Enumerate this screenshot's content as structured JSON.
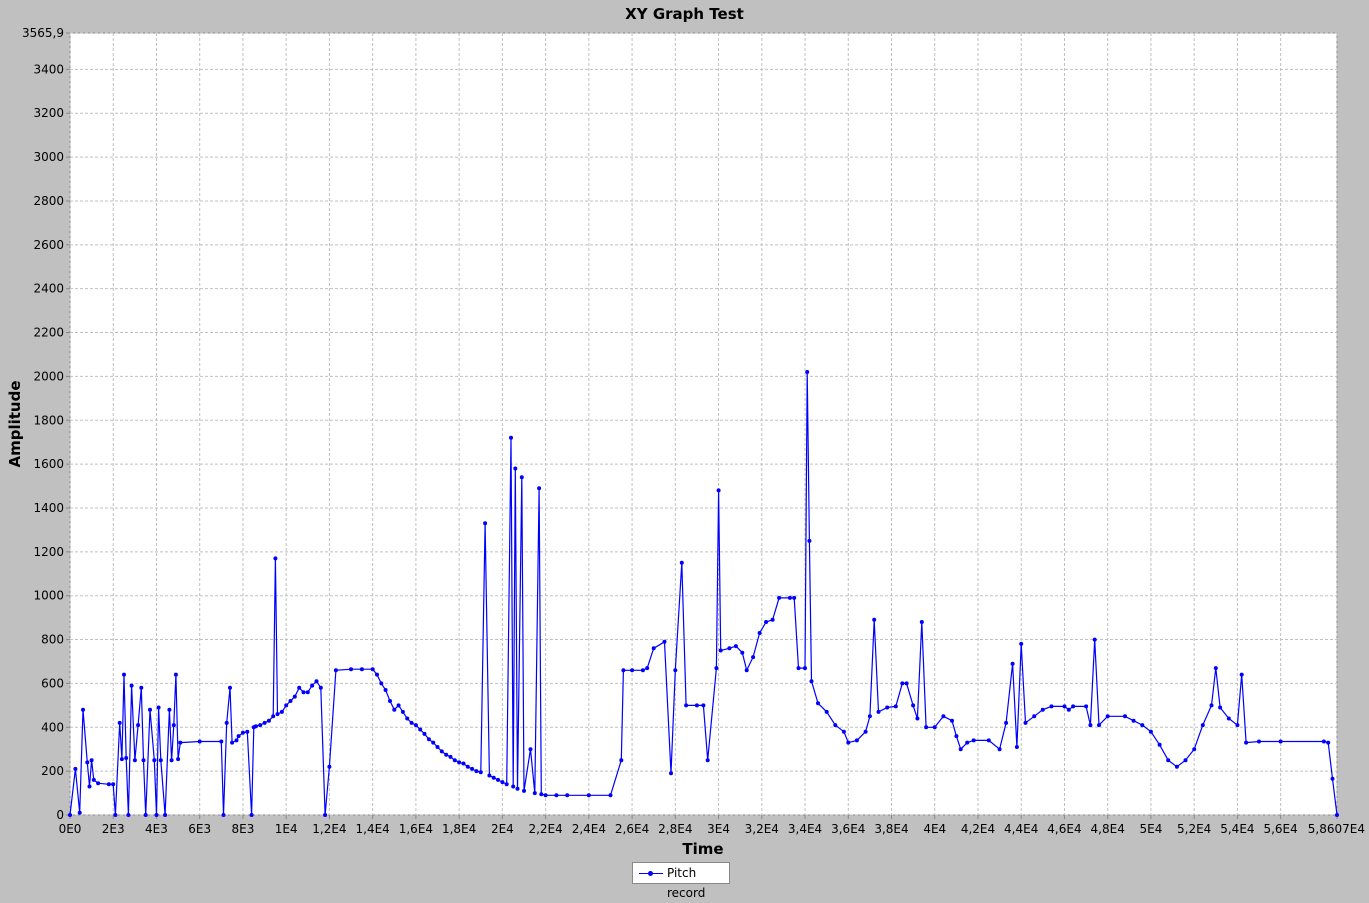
{
  "window": {
    "title": "XY Graph Test"
  },
  "colors": {
    "background": "#c0c0c0",
    "plot_background": "#ffffff",
    "series": "#0000ff",
    "grid": "#c0c0c0"
  },
  "chart_data": {
    "type": "line",
    "title": "XY Graph Test",
    "xlabel": "Time",
    "ylabel": "Amplitude",
    "xlim": [
      0,
      58607
    ],
    "ylim": [
      0,
      3565.9
    ],
    "grid": true,
    "legend_position": "bottom-center",
    "x_ticks": [
      {
        "v": 0,
        "label": "0E0"
      },
      {
        "v": 2000,
        "label": "2E3"
      },
      {
        "v": 4000,
        "label": "4E3"
      },
      {
        "v": 6000,
        "label": "6E3"
      },
      {
        "v": 8000,
        "label": "8E3"
      },
      {
        "v": 10000,
        "label": "1E4"
      },
      {
        "v": 12000,
        "label": "1,2E4"
      },
      {
        "v": 14000,
        "label": "1,4E4"
      },
      {
        "v": 16000,
        "label": "1,6E4"
      },
      {
        "v": 18000,
        "label": "1,8E4"
      },
      {
        "v": 20000,
        "label": "2E4"
      },
      {
        "v": 22000,
        "label": "2,2E4"
      },
      {
        "v": 24000,
        "label": "2,4E4"
      },
      {
        "v": 26000,
        "label": "2,6E4"
      },
      {
        "v": 28000,
        "label": "2,8E4"
      },
      {
        "v": 30000,
        "label": "3E4"
      },
      {
        "v": 32000,
        "label": "3,2E4"
      },
      {
        "v": 34000,
        "label": "3,4E4"
      },
      {
        "v": 36000,
        "label": "3,6E4"
      },
      {
        "v": 38000,
        "label": "3,8E4"
      },
      {
        "v": 40000,
        "label": "4E4"
      },
      {
        "v": 42000,
        "label": "4,2E4"
      },
      {
        "v": 44000,
        "label": "4,4E4"
      },
      {
        "v": 46000,
        "label": "4,6E4"
      },
      {
        "v": 48000,
        "label": "4,8E4"
      },
      {
        "v": 50000,
        "label": "5E4"
      },
      {
        "v": 52000,
        "label": "5,2E4"
      },
      {
        "v": 54000,
        "label": "5,4E4"
      },
      {
        "v": 56000,
        "label": "5,6E4"
      },
      {
        "v": 58607,
        "label": "5,8607E4"
      }
    ],
    "y_ticks": [
      {
        "v": 0,
        "label": "0"
      },
      {
        "v": 200,
        "label": "200"
      },
      {
        "v": 400,
        "label": "400"
      },
      {
        "v": 600,
        "label": "600"
      },
      {
        "v": 800,
        "label": "800"
      },
      {
        "v": 1000,
        "label": "1000"
      },
      {
        "v": 1200,
        "label": "1200"
      },
      {
        "v": 1400,
        "label": "1400"
      },
      {
        "v": 1600,
        "label": "1600"
      },
      {
        "v": 1800,
        "label": "1800"
      },
      {
        "v": 2000,
        "label": "2000"
      },
      {
        "v": 2200,
        "label": "2200"
      },
      {
        "v": 2400,
        "label": "2400"
      },
      {
        "v": 2600,
        "label": "2600"
      },
      {
        "v": 2800,
        "label": "2800"
      },
      {
        "v": 3000,
        "label": "3000"
      },
      {
        "v": 3200,
        "label": "3200"
      },
      {
        "v": 3400,
        "label": "3400"
      },
      {
        "v": 3565.9,
        "label": "3565,9"
      }
    ],
    "series": [
      {
        "name": "Pitch record",
        "points": [
          [
            0,
            0
          ],
          [
            250,
            210
          ],
          [
            450,
            10
          ],
          [
            600,
            480
          ],
          [
            800,
            240
          ],
          [
            900,
            130
          ],
          [
            1000,
            250
          ],
          [
            1100,
            160
          ],
          [
            1300,
            145
          ],
          [
            1800,
            140
          ],
          [
            2000,
            140
          ],
          [
            2100,
            0
          ],
          [
            2300,
            420
          ],
          [
            2400,
            255
          ],
          [
            2500,
            640
          ],
          [
            2600,
            260
          ],
          [
            2700,
            0
          ],
          [
            2850,
            590
          ],
          [
            3000,
            250
          ],
          [
            3150,
            410
          ],
          [
            3300,
            580
          ],
          [
            3400,
            250
          ],
          [
            3500,
            0
          ],
          [
            3700,
            480
          ],
          [
            3900,
            250
          ],
          [
            4000,
            0
          ],
          [
            4100,
            490
          ],
          [
            4200,
            250
          ],
          [
            4400,
            0
          ],
          [
            4600,
            480
          ],
          [
            4700,
            250
          ],
          [
            4800,
            410
          ],
          [
            4900,
            640
          ],
          [
            5000,
            255
          ],
          [
            5100,
            330
          ],
          [
            6000,
            335
          ],
          [
            7000,
            335
          ],
          [
            7100,
            0
          ],
          [
            7250,
            420
          ],
          [
            7400,
            580
          ],
          [
            7500,
            330
          ],
          [
            7700,
            340
          ],
          [
            7800,
            360
          ],
          [
            8000,
            375
          ],
          [
            8200,
            380
          ],
          [
            8400,
            0
          ],
          [
            8500,
            400
          ],
          [
            8600,
            405
          ],
          [
            8800,
            410
          ],
          [
            9000,
            420
          ],
          [
            9200,
            430
          ],
          [
            9400,
            450
          ],
          [
            9500,
            1170
          ],
          [
            9600,
            460
          ],
          [
            9800,
            470
          ],
          [
            10000,
            500
          ],
          [
            10200,
            520
          ],
          [
            10400,
            540
          ],
          [
            10600,
            580
          ],
          [
            10800,
            560
          ],
          [
            11000,
            560
          ],
          [
            11200,
            590
          ],
          [
            11400,
            610
          ],
          [
            11600,
            580
          ],
          [
            11800,
            0
          ],
          [
            12000,
            220
          ],
          [
            12300,
            660
          ],
          [
            13000,
            665
          ],
          [
            13500,
            665
          ],
          [
            14000,
            665
          ],
          [
            14200,
            640
          ],
          [
            14400,
            600
          ],
          [
            14600,
            570
          ],
          [
            14800,
            520
          ],
          [
            15000,
            480
          ],
          [
            15200,
            500
          ],
          [
            15400,
            470
          ],
          [
            15600,
            440
          ],
          [
            15800,
            420
          ],
          [
            16000,
            410
          ],
          [
            16200,
            390
          ],
          [
            16400,
            370
          ],
          [
            16600,
            345
          ],
          [
            16800,
            330
          ],
          [
            17000,
            310
          ],
          [
            17200,
            290
          ],
          [
            17400,
            275
          ],
          [
            17600,
            265
          ],
          [
            17800,
            250
          ],
          [
            18000,
            240
          ],
          [
            18200,
            235
          ],
          [
            18400,
            220
          ],
          [
            18600,
            210
          ],
          [
            18800,
            200
          ],
          [
            19000,
            195
          ],
          [
            19200,
            1330
          ],
          [
            19400,
            180
          ],
          [
            19600,
            170
          ],
          [
            19800,
            160
          ],
          [
            20000,
            150
          ],
          [
            20200,
            140
          ],
          [
            20400,
            1720
          ],
          [
            20500,
            130
          ],
          [
            20600,
            1580
          ],
          [
            20700,
            120
          ],
          [
            20900,
            1540
          ],
          [
            21000,
            110
          ],
          [
            21300,
            300
          ],
          [
            21500,
            100
          ],
          [
            21700,
            1490
          ],
          [
            21800,
            95
          ],
          [
            22000,
            90
          ],
          [
            22500,
            90
          ],
          [
            23000,
            90
          ],
          [
            24000,
            90
          ],
          [
            25000,
            90
          ],
          [
            25500,
            250
          ],
          [
            25600,
            660
          ],
          [
            26000,
            660
          ],
          [
            26500,
            660
          ],
          [
            26700,
            670
          ],
          [
            27000,
            760
          ],
          [
            27500,
            790
          ],
          [
            27800,
            190
          ],
          [
            28000,
            660
          ],
          [
            28300,
            1150
          ],
          [
            28500,
            500
          ],
          [
            29000,
            500
          ],
          [
            29300,
            500
          ],
          [
            29500,
            250
          ],
          [
            29900,
            670
          ],
          [
            30000,
            1480
          ],
          [
            30100,
            750
          ],
          [
            30500,
            760
          ],
          [
            30800,
            770
          ],
          [
            31100,
            740
          ],
          [
            31300,
            660
          ],
          [
            31600,
            720
          ],
          [
            31900,
            830
          ],
          [
            32200,
            880
          ],
          [
            32500,
            890
          ],
          [
            32800,
            990
          ],
          [
            33300,
            990
          ],
          [
            33500,
            990
          ],
          [
            33700,
            670
          ],
          [
            34000,
            670
          ],
          [
            34100,
            2020
          ],
          [
            34200,
            1250
          ],
          [
            34300,
            610
          ],
          [
            34600,
            510
          ],
          [
            35000,
            470
          ],
          [
            35400,
            410
          ],
          [
            35800,
            380
          ],
          [
            36000,
            330
          ],
          [
            36400,
            340
          ],
          [
            36800,
            380
          ],
          [
            37000,
            450
          ],
          [
            37200,
            890
          ],
          [
            37400,
            470
          ],
          [
            37800,
            490
          ],
          [
            38200,
            495
          ],
          [
            38500,
            600
          ],
          [
            38700,
            600
          ],
          [
            39000,
            500
          ],
          [
            39200,
            440
          ],
          [
            39400,
            880
          ],
          [
            39600,
            400
          ],
          [
            40000,
            400
          ],
          [
            40400,
            450
          ],
          [
            40800,
            430
          ],
          [
            41000,
            360
          ],
          [
            41200,
            300
          ],
          [
            41500,
            330
          ],
          [
            41800,
            340
          ],
          [
            42500,
            340
          ],
          [
            43000,
            300
          ],
          [
            43300,
            420
          ],
          [
            43600,
            690
          ],
          [
            43800,
            310
          ],
          [
            44000,
            780
          ],
          [
            44200,
            420
          ],
          [
            44600,
            450
          ],
          [
            45000,
            480
          ],
          [
            45400,
            495
          ],
          [
            46000,
            495
          ],
          [
            46200,
            480
          ],
          [
            46400,
            495
          ],
          [
            47000,
            495
          ],
          [
            47200,
            410
          ],
          [
            47400,
            800
          ],
          [
            47600,
            410
          ],
          [
            48000,
            450
          ],
          [
            48800,
            450
          ],
          [
            49200,
            430
          ],
          [
            49600,
            410
          ],
          [
            50000,
            380
          ],
          [
            50400,
            320
          ],
          [
            50800,
            250
          ],
          [
            51200,
            220
          ],
          [
            51600,
            250
          ],
          [
            52000,
            300
          ],
          [
            52400,
            410
          ],
          [
            52800,
            500
          ],
          [
            53000,
            670
          ],
          [
            53200,
            490
          ],
          [
            53600,
            440
          ],
          [
            54000,
            410
          ],
          [
            54200,
            640
          ],
          [
            54400,
            330
          ],
          [
            55000,
            335
          ],
          [
            56000,
            335
          ],
          [
            58000,
            335
          ],
          [
            58200,
            330
          ],
          [
            58400,
            165
          ],
          [
            58607,
            0
          ]
        ]
      }
    ]
  },
  "legend": {
    "label": "Pitch record"
  }
}
